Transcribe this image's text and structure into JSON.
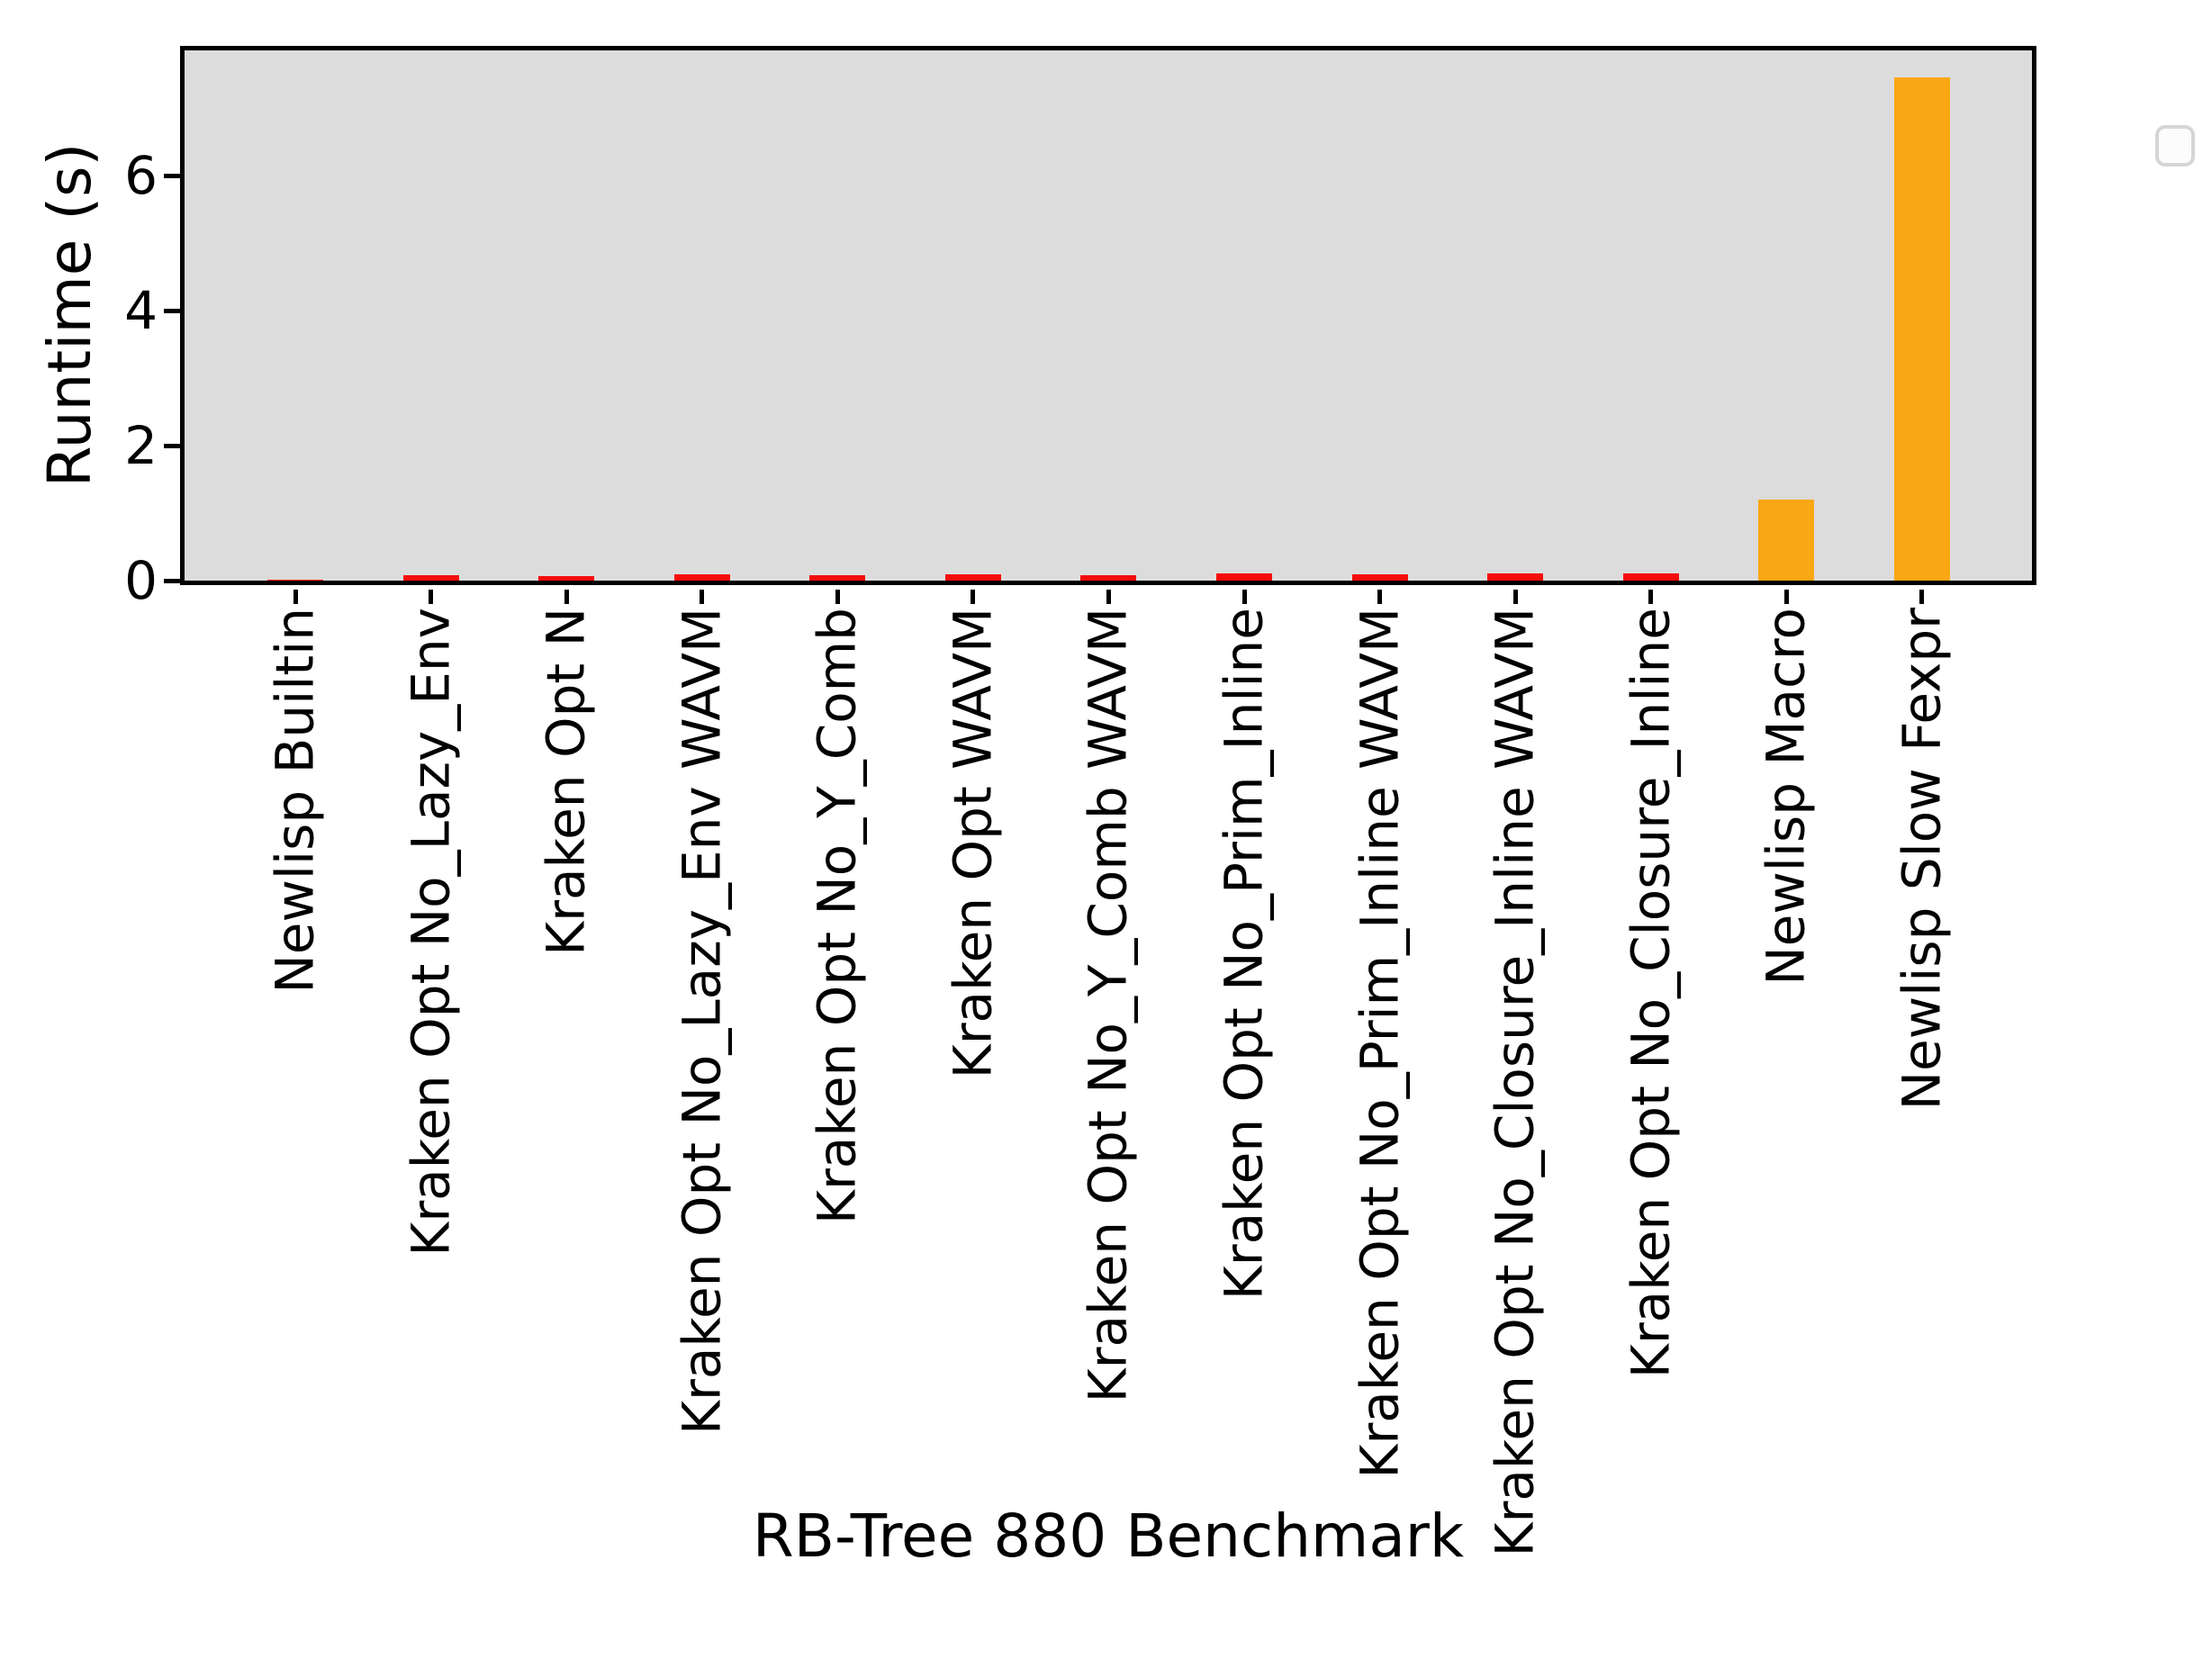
{
  "chart_data": {
    "type": "bar",
    "title": "",
    "xlabel": "RB-Tree 880 Benchmark",
    "ylabel": "Runtime (s)",
    "categories": [
      "Newlisp Builtin",
      "Kraken Opt No_Lazy_Env",
      "Kraken Opt N",
      "Kraken Opt No_Lazy_Env WAVM",
      "Kraken Opt No_Y_Comb",
      "Kraken Opt WAVM",
      "Kraken Opt No_Y_Comb WAVM",
      "Kraken Opt No_Prim_Inline",
      "Kraken Opt No_Prim_Inline WAVM",
      "Kraken Opt No_Closure_Inline WAVM",
      "Kraken Opt No_Closure_Inline",
      "Newlisp Macro",
      "Newlisp Slow Fexpr"
    ],
    "values": [
      0.01,
      0.08,
      0.07,
      0.09,
      0.08,
      0.09,
      0.085,
      0.11,
      0.1,
      0.11,
      0.11,
      1.2,
      7.45
    ],
    "bar_colors": [
      "#f70d0d",
      "#f70d0d",
      "#f70d0d",
      "#f70d0d",
      "#f70d0d",
      "#f70d0d",
      "#f70d0d",
      "#f70d0d",
      "#f70d0d",
      "#f70d0d",
      "#f70d0d",
      "#f9a713",
      "#f9a713"
    ],
    "yticks": [
      0,
      2,
      4,
      6
    ],
    "ytick_labels": [
      "0",
      "2",
      "4",
      "6"
    ],
    "ylim": [
      0,
      7.85
    ],
    "grid": false,
    "plot_background": "#dcdcdc",
    "figure_background": "#ffffff",
    "spine_color": "#000000",
    "legend": {
      "visible": true,
      "entries": []
    }
  }
}
